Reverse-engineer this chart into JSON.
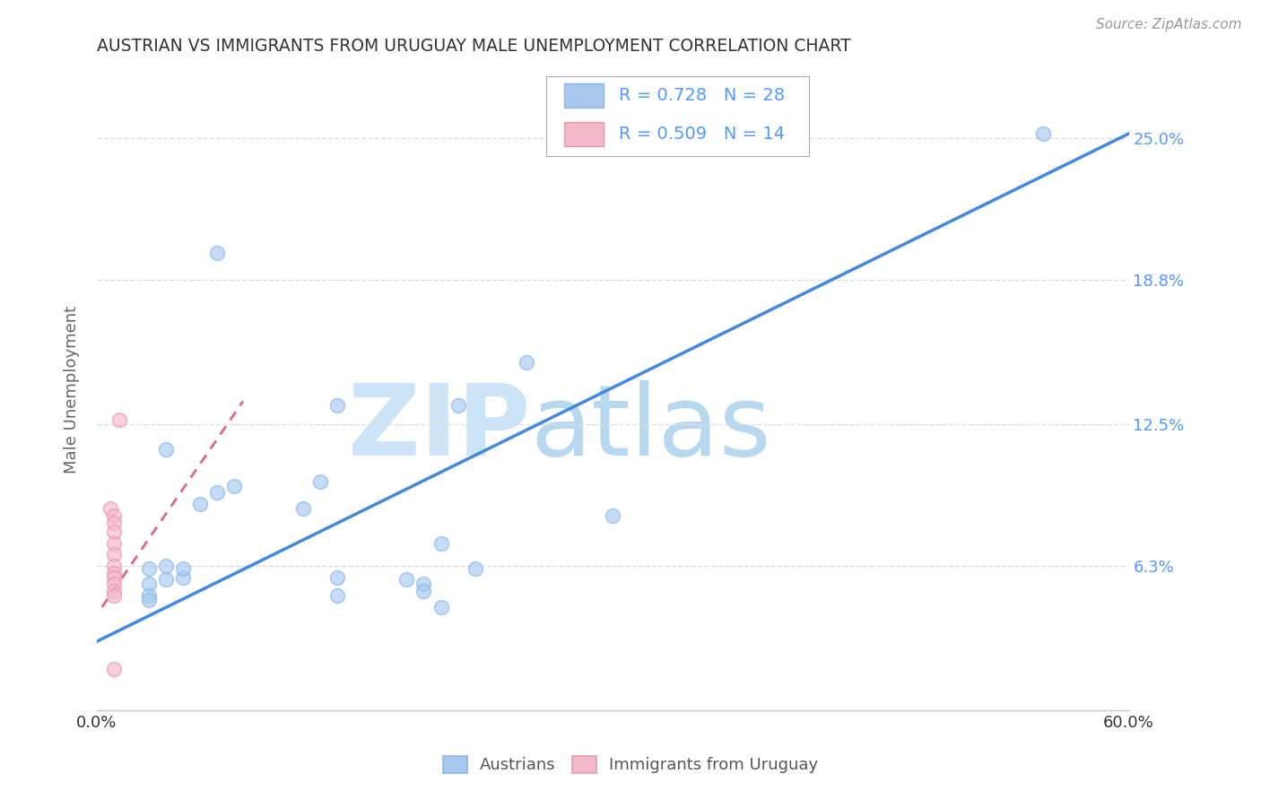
{
  "title": "AUSTRIAN VS IMMIGRANTS FROM URUGUAY MALE UNEMPLOYMENT CORRELATION CHART",
  "source": "Source: ZipAtlas.com",
  "ylabel": "Male Unemployment",
  "xmin": 0.0,
  "xmax": 0.6,
  "ymin": 0.0,
  "ymax": 0.28,
  "yticks": [
    0.0,
    0.063,
    0.125,
    0.188,
    0.25
  ],
  "ytick_labels": [
    "",
    "6.3%",
    "12.5%",
    "18.8%",
    "25.0%"
  ],
  "xtick_labels": [
    "0.0%",
    "60.0%"
  ],
  "blue_R": "0.728",
  "blue_N": "28",
  "pink_R": "0.509",
  "pink_N": "14",
  "legend_label_blue": "Austrians",
  "legend_label_pink": "Immigrants from Uruguay",
  "watermark_zip": "ZIP",
  "watermark_atlas": "atlas",
  "blue_scatter_x": [
    0.55,
    0.07,
    0.04,
    0.14,
    0.25,
    0.21,
    0.04,
    0.05,
    0.05,
    0.08,
    0.07,
    0.06,
    0.12,
    0.13,
    0.03,
    0.03,
    0.03,
    0.03,
    0.04,
    0.14,
    0.18,
    0.22,
    0.2,
    0.19,
    0.14,
    0.19,
    0.2,
    0.3
  ],
  "blue_scatter_y": [
    0.252,
    0.2,
    0.114,
    0.133,
    0.152,
    0.133,
    0.063,
    0.058,
    0.062,
    0.098,
    0.095,
    0.09,
    0.088,
    0.1,
    0.062,
    0.055,
    0.05,
    0.048,
    0.057,
    0.058,
    0.057,
    0.062,
    0.073,
    0.055,
    0.05,
    0.052,
    0.045,
    0.085
  ],
  "pink_scatter_x": [
    0.013,
    0.008,
    0.01,
    0.01,
    0.01,
    0.01,
    0.01,
    0.01,
    0.01,
    0.01,
    0.01,
    0.01,
    0.01,
    0.01
  ],
  "pink_scatter_y": [
    0.127,
    0.088,
    0.085,
    0.082,
    0.078,
    0.073,
    0.068,
    0.063,
    0.06,
    0.058,
    0.055,
    0.052,
    0.05,
    0.018
  ],
  "blue_line_x": [
    0.0,
    0.6
  ],
  "blue_line_y": [
    0.03,
    0.252
  ],
  "pink_line_x": [
    0.003,
    0.085
  ],
  "pink_line_y": [
    0.045,
    0.135
  ],
  "blue_dot_color": "#a8c8f0",
  "pink_dot_color": "#f4b8c8",
  "blue_line_color": "#4488dd",
  "pink_line_color": "#dd6688",
  "title_color": "#333333",
  "axis_label_color": "#666666",
  "tick_label_color_right": "#5599ff",
  "grid_color": "#dddddd",
  "background_color": "#ffffff",
  "dot_size": 130,
  "dot_alpha": 0.65,
  "dot_linewidth": 1.2,
  "dot_edgecolor_blue": "#88b8e8",
  "dot_edgecolor_pink": "#e898b0"
}
